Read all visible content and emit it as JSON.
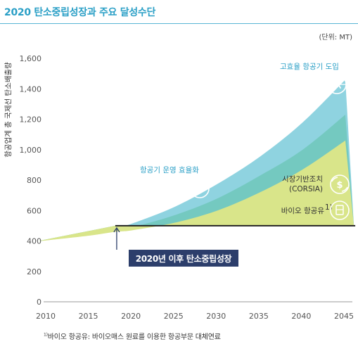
{
  "title": "2020 탄소중립성장과 주요 달성수단",
  "unit": "(단위: MT)",
  "footnote": {
    "marker": "1)",
    "text": "바이오 항공유: 바이오매스 원료를 이용한 항공부문 대체연료"
  },
  "callout": "2020년 이후 탄소중립성장",
  "colors": {
    "efficient_aircraft": "#8fd3e0",
    "operations": "#74c9c0",
    "market_corsia": "#74c9c0",
    "bio_fuel": "#d9e58a",
    "baseline": "#222222",
    "title": "#2a9fc6"
  },
  "chart_data": {
    "type": "area",
    "ylabel": "항공업계 총 국제선 탄소배출량",
    "x": [
      2010,
      2015,
      2020,
      2025,
      2030,
      2035,
      2040,
      2045
    ],
    "xticks": [
      "2010",
      "2015",
      "2020",
      "2025",
      "2030",
      "2035",
      "2040",
      "2045"
    ],
    "yticks": [
      "0",
      "200",
      "400",
      "600",
      "800",
      "1,000",
      "1,200",
      "1,400",
      "1,600"
    ],
    "xlim": [
      2010,
      2045
    ],
    "ylim": [
      0,
      1600
    ],
    "grid": false,
    "series": [
      {
        "name": "고효율 항공기 도입",
        "label_lines": [
          "고효율 항공기 도입"
        ],
        "icon": "airplane-icon",
        "x": [
          2009,
          2010,
          2015,
          2018,
          2020,
          2025,
          2030,
          2035,
          2040,
          2045
        ],
        "values": [
          400,
          410,
          450,
          485,
          515,
          625,
          775,
          955,
          1180,
          1460
        ]
      },
      {
        "name": "항공기 운영 효율화",
        "label_lines": [
          "항공기 운영 효율화"
        ],
        "icon": "drone-icon",
        "x": [
          2009,
          2010,
          2015,
          2018,
          2020,
          2025,
          2030,
          2035,
          2040,
          2045
        ],
        "values": [
          400,
          405,
          440,
          470,
          490,
          570,
          680,
          830,
          1000,
          1230
        ]
      },
      {
        "name": "시장기반조치(CORSIA)",
        "label_lines": [
          "시장기반조치",
          "(CORSIA)"
        ],
        "icon": "dollar-exchange-icon",
        "x": [
          2009,
          2010,
          2015,
          2018,
          2020,
          2025,
          2030,
          2035,
          2040,
          2045
        ],
        "values": [
          400,
          404,
          435,
          460,
          470,
          520,
          600,
          720,
          870,
          1060
        ]
      },
      {
        "name": "바이오 항공유",
        "label_lines": [
          "바이오 항공유"
        ],
        "label_sup": "1)",
        "icon": "fuel-barrel-icon",
        "x": [
          2009,
          2010,
          2015,
          2018,
          2020,
          2025,
          2030,
          2035,
          2040,
          2045
        ],
        "values": [
          400,
          404,
          435,
          460,
          470,
          520,
          600,
          720,
          870,
          1060
        ]
      }
    ],
    "baseline": {
      "from_year": 2018,
      "to_year": 2046,
      "value": 500
    }
  }
}
